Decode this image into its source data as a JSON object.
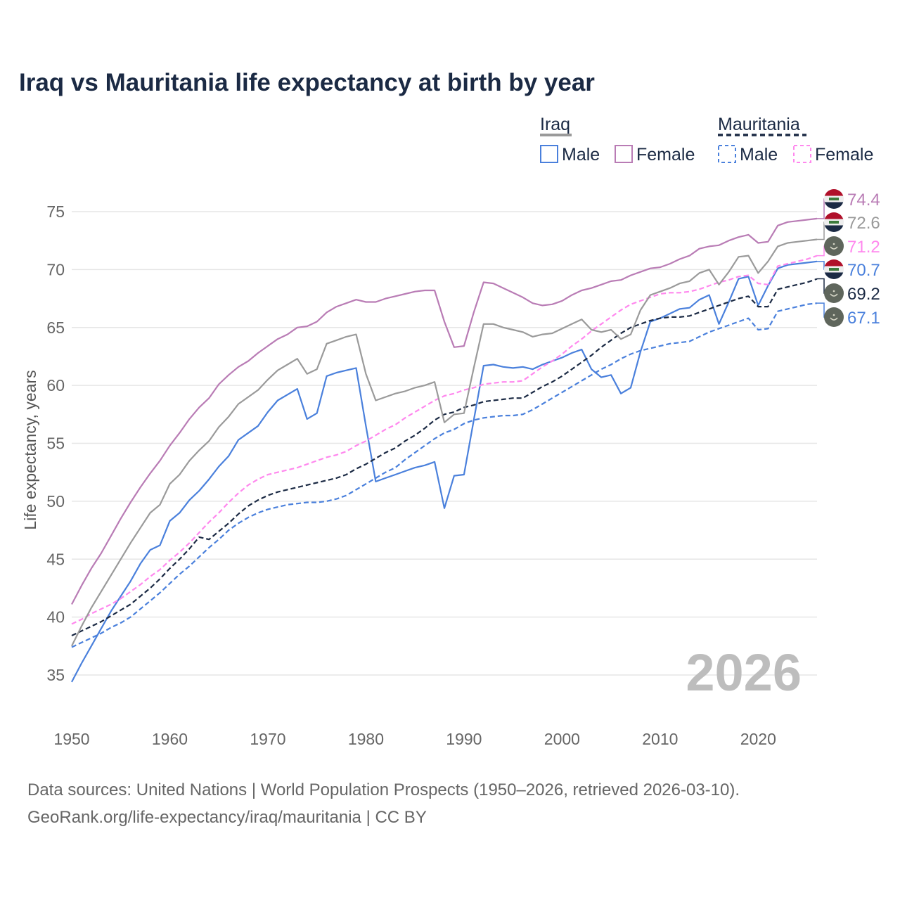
{
  "chart_data": {
    "type": "line",
    "title": "Iraq vs Mauritania life expectancy at birth by year",
    "xlabel": "",
    "ylabel": "Life expectancy, years",
    "xlim": [
      1950,
      2026
    ],
    "ylim": [
      32,
      77
    ],
    "x_ticks": [
      1950,
      1960,
      1970,
      1980,
      1990,
      2000,
      2010,
      2020
    ],
    "y_ticks": [
      35,
      40,
      45,
      50,
      55,
      60,
      65,
      70,
      75
    ],
    "grid": true,
    "watermark_year": "2026",
    "legend": {
      "placement": "top-right",
      "groups": [
        {
          "name": "Iraq",
          "items": [
            "Male",
            "Female"
          ]
        },
        {
          "name": "Mauritania",
          "items": [
            "Male",
            "Female"
          ]
        }
      ]
    },
    "x_start": 1950,
    "series": [
      {
        "name": "Iraq Female",
        "country": "Iraq",
        "color": "#b97cb5",
        "dashed": false,
        "end_label": "74.4",
        "values": [
          41.1,
          42.7,
          44.2,
          45.5,
          47.0,
          48.5,
          49.9,
          51.2,
          52.4,
          53.5,
          54.8,
          55.9,
          57.1,
          58.1,
          58.9,
          60.1,
          60.9,
          61.6,
          62.1,
          62.8,
          63.4,
          64.0,
          64.4,
          65.0,
          65.1,
          65.5,
          66.3,
          66.8,
          67.1,
          67.4,
          67.2,
          67.2,
          67.5,
          67.7,
          67.9,
          68.1,
          68.2,
          68.2,
          65.5,
          63.3,
          63.4,
          66.3,
          68.9,
          68.8,
          68.4,
          68.0,
          67.6,
          67.1,
          66.9,
          67.0,
          67.3,
          67.8,
          68.2,
          68.4,
          68.7,
          69.0,
          69.1,
          69.5,
          69.8,
          70.1,
          70.2,
          70.5,
          70.9,
          71.2,
          71.8,
          72.0,
          72.1,
          72.5,
          72.8,
          73.0,
          72.3,
          72.4,
          73.8,
          74.1,
          74.2,
          74.3,
          74.4
        ]
      },
      {
        "name": "Iraq",
        "country": "Iraq",
        "color": "#9a9a9a",
        "dashed": false,
        "end_label": "72.6",
        "values": [
          37.5,
          39.2,
          40.8,
          42.2,
          43.6,
          45.0,
          46.4,
          47.7,
          49.0,
          49.7,
          51.5,
          52.3,
          53.5,
          54.4,
          55.2,
          56.4,
          57.3,
          58.4,
          59.0,
          59.6,
          60.5,
          61.3,
          61.8,
          62.3,
          61.0,
          61.4,
          63.6,
          63.9,
          64.2,
          64.4,
          61.0,
          58.7,
          59.0,
          59.3,
          59.5,
          59.8,
          60.0,
          60.3,
          56.8,
          57.5,
          57.6,
          61.5,
          65.3,
          65.3,
          65.0,
          64.8,
          64.6,
          64.2,
          64.4,
          64.5,
          64.9,
          65.3,
          65.7,
          64.8,
          64.6,
          64.8,
          64.0,
          64.4,
          66.5,
          67.8,
          68.1,
          68.4,
          68.8,
          69.0,
          69.7,
          70.0,
          68.7,
          69.8,
          71.1,
          71.2,
          69.7,
          70.7,
          72.0,
          72.3,
          72.4,
          72.5,
          72.6
        ]
      },
      {
        "name": "Mauritania Female",
        "country": "Mauritania",
        "color": "#ff88ee",
        "dashed": true,
        "end_label": "71.2",
        "values": [
          39.4,
          39.8,
          40.3,
          40.7,
          41.1,
          41.6,
          42.2,
          42.8,
          43.5,
          44.1,
          44.9,
          45.6,
          46.4,
          47.3,
          48.2,
          49.0,
          49.9,
          50.7,
          51.4,
          51.9,
          52.3,
          52.5,
          52.7,
          52.9,
          53.2,
          53.5,
          53.8,
          54.0,
          54.3,
          54.8,
          55.2,
          55.7,
          56.2,
          56.6,
          57.2,
          57.7,
          58.2,
          58.7,
          59.1,
          59.3,
          59.6,
          59.8,
          60.1,
          60.2,
          60.3,
          60.3,
          60.4,
          61.0,
          61.6,
          62.1,
          62.7,
          63.4,
          64.0,
          64.7,
          65.3,
          65.9,
          66.5,
          67.0,
          67.3,
          67.6,
          67.9,
          68.0,
          68.0,
          68.1,
          68.3,
          68.6,
          68.9,
          69.1,
          69.4,
          69.5,
          68.8,
          68.7,
          70.3,
          70.5,
          70.7,
          70.9,
          71.2
        ]
      },
      {
        "name": "Iraq Male",
        "country": "Iraq",
        "color": "#4a80dc",
        "dashed": false,
        "end_label": "70.7",
        "values": [
          34.4,
          36.0,
          37.5,
          39.0,
          40.5,
          41.8,
          43.1,
          44.6,
          45.8,
          46.2,
          48.3,
          49.0,
          50.1,
          50.9,
          51.9,
          53.0,
          53.9,
          55.3,
          55.9,
          56.5,
          57.7,
          58.7,
          59.2,
          59.7,
          57.1,
          57.6,
          60.8,
          61.1,
          61.3,
          61.5,
          56.5,
          51.7,
          52.0,
          52.3,
          52.6,
          52.9,
          53.1,
          53.4,
          49.4,
          52.2,
          52.3,
          57.0,
          61.7,
          61.8,
          61.6,
          61.5,
          61.6,
          61.4,
          61.8,
          62.1,
          62.4,
          62.8,
          63.1,
          61.4,
          60.7,
          60.9,
          59.3,
          59.8,
          62.9,
          65.5,
          65.8,
          66.2,
          66.6,
          66.7,
          67.4,
          67.8,
          65.3,
          67.2,
          69.2,
          69.4,
          66.9,
          68.6,
          70.1,
          70.4,
          70.5,
          70.6,
          70.7
        ]
      },
      {
        "name": "Mauritania",
        "country": "Mauritania",
        "color": "#1b2a44",
        "dashed": true,
        "end_label": "69.2",
        "values": [
          38.4,
          38.8,
          39.2,
          39.6,
          40.1,
          40.6,
          41.1,
          41.8,
          42.5,
          43.3,
          44.2,
          45.0,
          45.9,
          46.9,
          46.7,
          47.4,
          48.1,
          48.9,
          49.6,
          50.1,
          50.5,
          50.8,
          51.0,
          51.2,
          51.4,
          51.6,
          51.8,
          52.0,
          52.3,
          52.8,
          53.2,
          53.7,
          54.2,
          54.6,
          55.2,
          55.7,
          56.3,
          57.0,
          57.5,
          57.7,
          58.1,
          58.3,
          58.6,
          58.7,
          58.8,
          58.9,
          58.9,
          59.4,
          59.9,
          60.3,
          60.8,
          61.4,
          62.0,
          62.6,
          63.3,
          63.9,
          64.5,
          65.0,
          65.3,
          65.6,
          65.8,
          65.9,
          65.9,
          66.0,
          66.3,
          66.6,
          66.9,
          67.2,
          67.5,
          67.7,
          66.8,
          66.8,
          68.3,
          68.5,
          68.7,
          68.9,
          69.2
        ]
      },
      {
        "name": "Mauritania Male",
        "country": "Mauritania",
        "color": "#4a80dc",
        "dashed": true,
        "end_label": "67.1",
        "values": [
          37.4,
          37.8,
          38.2,
          38.6,
          39.1,
          39.5,
          40.0,
          40.7,
          41.4,
          42.1,
          42.9,
          43.7,
          44.4,
          45.2,
          46.0,
          46.7,
          47.5,
          48.1,
          48.6,
          49.0,
          49.3,
          49.5,
          49.7,
          49.8,
          49.9,
          49.9,
          50.0,
          50.2,
          50.5,
          51.0,
          51.5,
          52.0,
          52.5,
          52.9,
          53.6,
          54.2,
          54.8,
          55.4,
          55.9,
          56.2,
          56.7,
          57.0,
          57.2,
          57.3,
          57.4,
          57.4,
          57.5,
          57.9,
          58.4,
          58.9,
          59.4,
          59.9,
          60.4,
          60.9,
          61.4,
          61.8,
          62.3,
          62.7,
          63.0,
          63.2,
          63.4,
          63.6,
          63.7,
          63.8,
          64.2,
          64.6,
          64.9,
          65.2,
          65.5,
          65.8,
          64.8,
          64.9,
          66.4,
          66.6,
          66.8,
          67.0,
          67.1
        ]
      }
    ],
    "source_line1": "Data sources: United Nations | World Population Prospects (1950–2026, retrieved 2026-03-10).",
    "source_line2": "GeoRank.org/life-expectancy/iraq/mauritania | CC BY"
  }
}
